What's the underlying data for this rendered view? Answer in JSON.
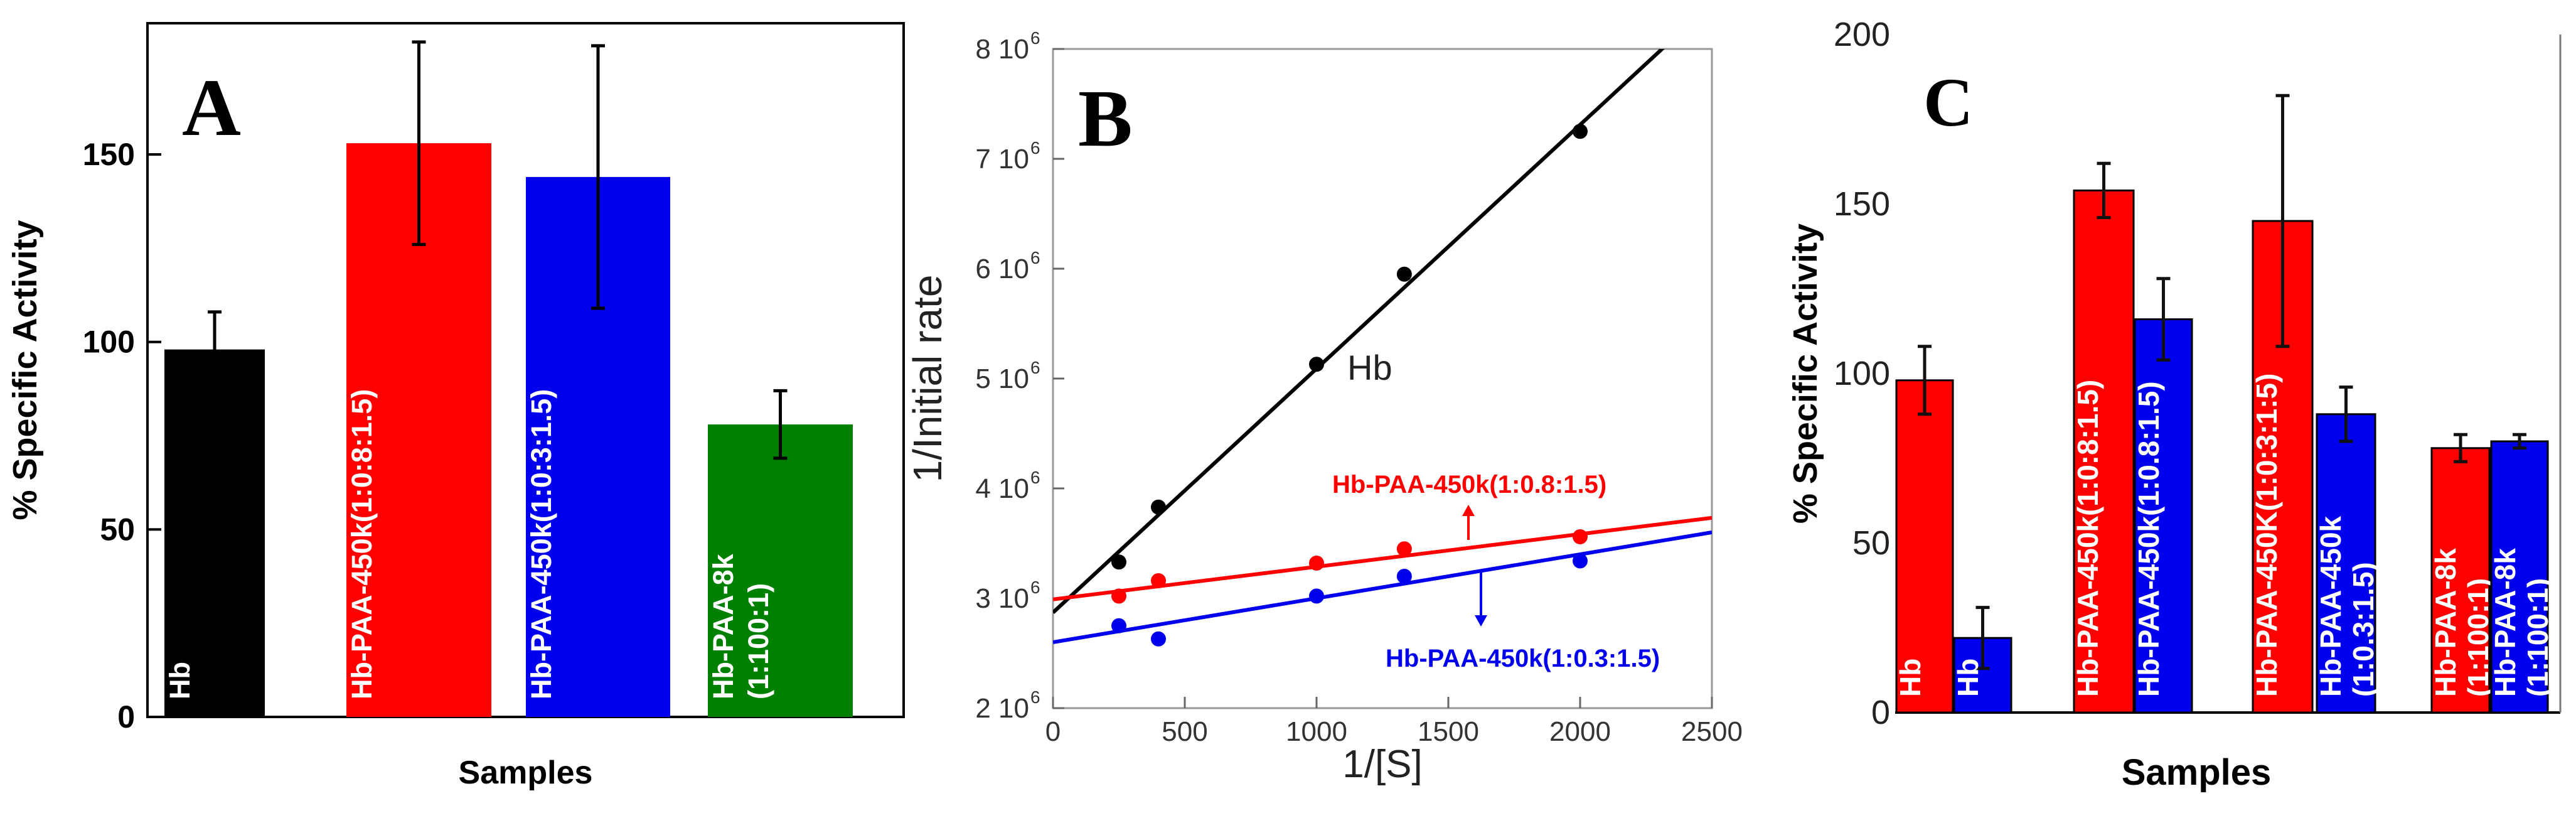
{
  "figure": {
    "panels": [
      "A",
      "B",
      "C"
    ]
  },
  "chart_data": [
    {
      "id": "A",
      "type": "bar",
      "panel_label": "A",
      "title": "",
      "xlabel": "Samples",
      "ylabel": "% Specific Activity",
      "ylim": [
        0,
        185
      ],
      "yticks": [
        0,
        50,
        100,
        150
      ],
      "grid": false,
      "categories": [
        "Hb",
        "Hb-PAA-450k(1:0.8:1.5)",
        "Hb-PAA-450k(1:0.3:1.5)",
        "Hb-PAA-8k\n(1:100:1)"
      ],
      "bar_labels": [
        "Hb",
        "Hb-PAA-450k(1:0:8:1.5)",
        "Hb-PAA-450k(1:0:3:1.5)",
        "Hb-PAA-8k|(1:100:1)"
      ],
      "values": [
        98,
        153,
        144,
        78
      ],
      "errors": [
        10,
        27,
        35,
        9
      ],
      "colors": [
        "#000000",
        "#ff0000",
        "#0000ee",
        "#008000"
      ]
    },
    {
      "id": "B",
      "type": "scatter",
      "panel_label": "B",
      "title": "",
      "xlabel": "1/[S]",
      "ylabel": "1/Initial rate",
      "xlim": [
        0,
        2500
      ],
      "ylim": [
        2000000,
        8000000
      ],
      "xticks": [
        0,
        500,
        1000,
        1500,
        2000,
        2500
      ],
      "xtick_labels": [
        "0",
        "500",
        "1000",
        "1500",
        "2000",
        "2500"
      ],
      "yticks": [
        2000000,
        3000000,
        4000000,
        5000000,
        6000000,
        7000000,
        8000000
      ],
      "ytick_mantissas": [
        "2 10",
        "3 10",
        "4 10",
        "5 10",
        "6 10",
        "7 10",
        "8 10"
      ],
      "ytick_exponent": "6",
      "grid": false,
      "series": [
        {
          "name": "Hb",
          "color": "#000000",
          "x": [
            250,
            400,
            1000,
            1333,
            2000
          ],
          "y": [
            3330000,
            3830000,
            5130000,
            5950000,
            7250000
          ],
          "fit": {
            "intercept": 2870000,
            "slope": 2220
          },
          "label": "Hb"
        },
        {
          "name": "Hb-PAA-450k(1:0.8:1.5)",
          "color": "#ff0000",
          "x": [
            250,
            400,
            1000,
            1333,
            2000
          ],
          "y": [
            3020000,
            3160000,
            3320000,
            3450000,
            3560000
          ],
          "fit": {
            "intercept": 2990000,
            "slope": 297
          },
          "label": "Hb-PAA-450k(1:0.8:1.5)"
        },
        {
          "name": "Hb-PAA-450k(1:0.3:1.5)",
          "color": "#0000ee",
          "x": [
            250,
            400,
            1000,
            1333,
            2000
          ],
          "y": [
            2750000,
            2630000,
            3020000,
            3200000,
            3340000
          ],
          "fit": {
            "intercept": 2600000,
            "slope": 400
          },
          "label": "Hb-PAA-450k(1:0.3:1.5)"
        }
      ]
    },
    {
      "id": "C",
      "type": "bar",
      "panel_label": "C",
      "title": "",
      "xlabel": "Samples",
      "ylabel": "% Specific Activity",
      "ylim": [
        0,
        200
      ],
      "yticks": [
        0,
        50,
        100,
        150,
        200
      ],
      "grid": false,
      "categories": [
        "Hb",
        "Hb-PAA-450k(1:0.8:1.5)",
        "Hb-PAA-450k(1:0.3:1.5)",
        "Hb-PAA-8k (1:100:1)"
      ],
      "series": [
        {
          "name": "red",
          "color": "#ff0000",
          "values": [
            98,
            154,
            145,
            78
          ],
          "errors": [
            10,
            8,
            37,
            4
          ],
          "labels": [
            "Hb",
            "Hb-PAA-450k(1:0:8:1.5)",
            "Hb-PAA-450K(1:0:3:1:5)",
            "Hb-PAA-8k|(1:100:1)"
          ]
        },
        {
          "name": "blue",
          "color": "#0000ee",
          "values": [
            22,
            116,
            88,
            80
          ],
          "errors": [
            9,
            12,
            8,
            2
          ],
          "labels": [
            "Hb",
            "Hb-PAA-450k(1:0.8:1.5)",
            "Hb-PAA-450k|(1:0.3:1.5)",
            "Hb-PAA-8k|(1:100:1)"
          ]
        }
      ]
    }
  ]
}
